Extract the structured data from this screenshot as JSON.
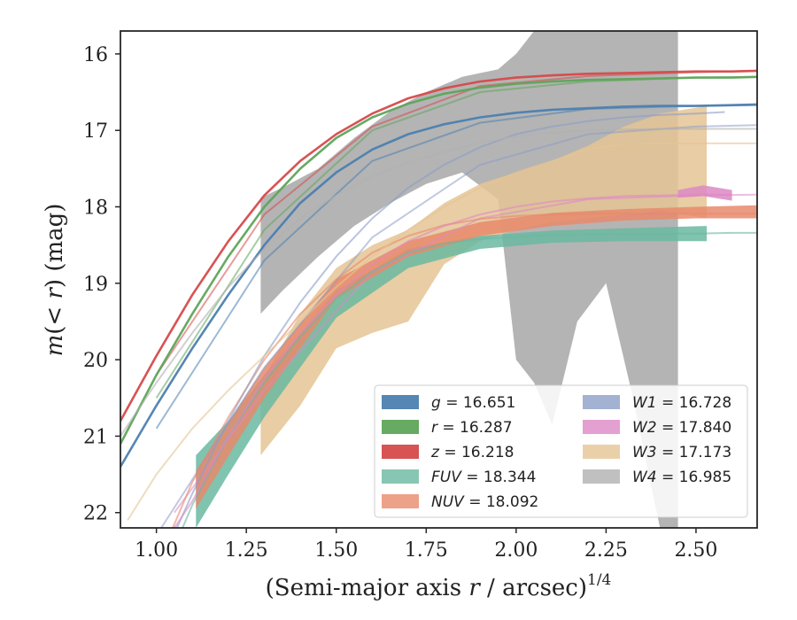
{
  "chart_data": {
    "type": "line",
    "title": "",
    "xlabel": "(Semi-major axis r / arcsec)^1/4",
    "xlabel_parts": {
      "main": "(Semi-major axis ",
      "var": "r",
      "mid": " / arcsec)",
      "sup": "1/4"
    },
    "ylabel": "m(< r) (mag)",
    "ylabel_parts": {
      "m": "m",
      "open": "(",
      "lt": "< ",
      "r": "r",
      "close": ") (mag)"
    },
    "xlim": [
      0.9,
      2.67
    ],
    "ylim": [
      22.2,
      15.7
    ],
    "y_inverted": true,
    "grid": false,
    "legend_placement": "lower-right",
    "x_ticks": [
      {
        "value": 1.0,
        "label": "1.00"
      },
      {
        "value": 1.25,
        "label": "1.25"
      },
      {
        "value": 1.5,
        "label": "1.50"
      },
      {
        "value": 1.75,
        "label": "1.75"
      },
      {
        "value": 2.0,
        "label": "2.00"
      },
      {
        "value": 2.25,
        "label": "2.25"
      },
      {
        "value": 2.5,
        "label": "2.50"
      }
    ],
    "y_ticks": [
      {
        "value": 16,
        "label": "16"
      },
      {
        "value": 17,
        "label": "17"
      },
      {
        "value": 18,
        "label": "18"
      },
      {
        "value": 19,
        "label": "19"
      },
      {
        "value": 20,
        "label": "20"
      },
      {
        "value": 21,
        "label": "21"
      },
      {
        "value": 22,
        "label": "22"
      }
    ],
    "series": [
      {
        "band": "g",
        "legend_var": "g",
        "legend_value": "16.651",
        "color": "#4c7fb0",
        "curve": {
          "x": [
            0.9,
            1.0,
            1.1,
            1.2,
            1.3,
            1.4,
            1.5,
            1.6,
            1.7,
            1.8,
            1.9,
            2.0,
            2.1,
            2.2,
            2.3,
            2.4,
            2.5,
            2.6,
            2.67
          ],
          "y": [
            21.4,
            20.6,
            19.85,
            19.15,
            18.5,
            17.95,
            17.55,
            17.25,
            17.05,
            16.92,
            16.83,
            16.77,
            16.73,
            16.71,
            16.69,
            16.68,
            16.68,
            16.67,
            16.66
          ]
        },
        "smooth": {
          "x": [
            1.0,
            1.3,
            1.6,
            1.9,
            2.2,
            2.5,
            2.67
          ],
          "y": [
            20.9,
            18.7,
            17.4,
            16.9,
            16.72,
            16.68,
            16.67
          ]
        }
      },
      {
        "band": "r",
        "legend_var": "r",
        "legend_value": "16.287",
        "color": "#5fa55a",
        "curve": {
          "x": [
            0.9,
            1.0,
            1.1,
            1.2,
            1.3,
            1.4,
            1.5,
            1.6,
            1.7,
            1.8,
            1.9,
            2.0,
            2.1,
            2.2,
            2.3,
            2.4,
            2.5,
            2.6,
            2.67
          ],
          "y": [
            21.1,
            20.2,
            19.4,
            18.65,
            18.0,
            17.5,
            17.1,
            16.83,
            16.65,
            16.52,
            16.44,
            16.39,
            16.36,
            16.34,
            16.33,
            16.32,
            16.31,
            16.31,
            16.3
          ]
        },
        "smooth": {
          "x": [
            1.0,
            1.3,
            1.6,
            1.9,
            2.2,
            2.5,
            2.67
          ],
          "y": [
            20.5,
            18.3,
            17.0,
            16.5,
            16.36,
            16.31,
            16.3
          ]
        }
      },
      {
        "band": "z",
        "legend_var": "z",
        "legend_value": "16.218",
        "color": "#d64a4b",
        "curve": {
          "x": [
            0.9,
            1.0,
            1.1,
            1.2,
            1.3,
            1.4,
            1.5,
            1.6,
            1.7,
            1.8,
            1.9,
            2.0,
            2.1,
            2.2,
            2.3,
            2.4,
            2.5,
            2.6,
            2.67
          ],
          "y": [
            20.8,
            19.95,
            19.15,
            18.45,
            17.85,
            17.4,
            17.05,
            16.78,
            16.58,
            16.45,
            16.36,
            16.31,
            16.28,
            16.26,
            16.25,
            16.24,
            16.23,
            16.23,
            16.22
          ]
        },
        "smooth": {
          "x": [
            1.0,
            1.3,
            1.6,
            1.9,
            2.2,
            2.5,
            2.67
          ],
          "y": [
            20.2,
            18.1,
            16.95,
            16.42,
            16.29,
            16.24,
            16.22
          ]
        }
      },
      {
        "band": "FUV",
        "legend_var": "FUV",
        "legend_value": "18.344",
        "color": "#6ab8a1",
        "curve": {
          "x": [
            1.0,
            1.1,
            1.2,
            1.3,
            1.4,
            1.5,
            1.6,
            1.7,
            1.8,
            1.9,
            2.0,
            2.1,
            2.2,
            2.3,
            2.4,
            2.5,
            2.6,
            2.67
          ],
          "y": [
            23.0,
            21.9,
            21.0,
            20.3,
            19.7,
            19.2,
            18.85,
            18.6,
            18.48,
            18.42,
            18.39,
            18.37,
            18.36,
            18.35,
            18.35,
            18.35,
            18.34,
            18.34
          ]
        },
        "band_upper": {
          "x": [
            1.11,
            1.2,
            1.3,
            1.5,
            1.7,
            1.9,
            2.1,
            2.3,
            2.53
          ],
          "y": [
            21.25,
            20.8,
            20.2,
            19.1,
            18.55,
            18.38,
            18.31,
            18.28,
            18.25
          ]
        },
        "band_lower": {
          "x": [
            1.11,
            1.2,
            1.3,
            1.5,
            1.7,
            1.9,
            2.1,
            2.3,
            2.53
          ],
          "y": [
            22.2,
            21.5,
            20.75,
            19.45,
            18.8,
            18.55,
            18.47,
            18.45,
            18.45
          ]
        }
      },
      {
        "band": "NUV",
        "legend_var": "NUV",
        "legend_value": "18.092",
        "color": "#e8896c",
        "curve": {
          "x": [
            1.0,
            1.1,
            1.2,
            1.3,
            1.4,
            1.5,
            1.6,
            1.7,
            1.8,
            1.9,
            2.0,
            2.1,
            2.2,
            2.3,
            2.4,
            2.5,
            2.6,
            2.67
          ],
          "y": [
            22.7,
            21.6,
            20.75,
            20.0,
            19.4,
            18.95,
            18.6,
            18.38,
            18.24,
            18.16,
            18.12,
            18.1,
            18.09,
            18.09,
            18.09,
            18.09,
            18.09,
            18.09
          ]
        },
        "band_upper": {
          "x": [
            1.11,
            1.3,
            1.5,
            1.7,
            1.9,
            2.1,
            2.3,
            2.5,
            2.67
          ],
          "y": [
            21.45,
            20.1,
            18.95,
            18.45,
            18.2,
            18.08,
            18.03,
            18.0,
            17.98
          ]
        },
        "band_lower": {
          "x": [
            1.11,
            1.3,
            1.5,
            1.7,
            1.9,
            2.1,
            2.3,
            2.5,
            2.67
          ],
          "y": [
            21.95,
            20.5,
            19.2,
            18.65,
            18.38,
            18.25,
            18.18,
            18.15,
            18.15
          ]
        }
      },
      {
        "band": "W1",
        "legend_var": "W1",
        "legend_value": "16.728",
        "color": "#8c9dc7",
        "curve": {
          "x": [
            1.0,
            1.1,
            1.2,
            1.3,
            1.4,
            1.5,
            1.6,
            1.7,
            1.8,
            1.9,
            2.0,
            2.1,
            2.2,
            2.3,
            2.4,
            2.5,
            2.58
          ],
          "y": [
            22.8,
            21.75,
            20.8,
            19.95,
            19.25,
            18.65,
            18.15,
            17.75,
            17.45,
            17.22,
            17.05,
            16.95,
            16.88,
            16.83,
            16.8,
            16.78,
            16.76
          ]
        },
        "smooth": {
          "x": [
            1.0,
            1.3,
            1.6,
            1.9,
            2.2,
            2.5,
            2.67
          ],
          "y": [
            22.3,
            20.1,
            18.4,
            17.45,
            17.05,
            16.95,
            16.93
          ]
        }
      },
      {
        "band": "W2",
        "legend_var": "W2",
        "legend_value": "17.840",
        "color": "#dd88c4",
        "curve": {
          "x": [
            1.05,
            1.1,
            1.2,
            1.3,
            1.4,
            1.5,
            1.6,
            1.7,
            1.8,
            1.9,
            2.0,
            2.1,
            2.2,
            2.3,
            2.4,
            2.5,
            2.6
          ],
          "y": [
            22.2,
            21.85,
            21.0,
            20.25,
            19.65,
            19.15,
            18.75,
            18.45,
            18.25,
            18.1,
            18.0,
            17.93,
            17.89,
            17.86,
            17.85,
            17.84,
            17.84
          ]
        },
        "smooth": {
          "x": [
            1.05,
            1.3,
            1.6,
            1.9,
            2.2,
            2.5,
            2.67
          ],
          "y": [
            22.0,
            20.4,
            18.85,
            18.15,
            17.9,
            17.85,
            17.84
          ]
        },
        "band_upper": {
          "x": [
            2.45,
            2.52,
            2.6
          ],
          "y": [
            17.78,
            17.72,
            17.78
          ]
        },
        "band_lower": {
          "x": [
            2.45,
            2.52,
            2.6
          ],
          "y": [
            17.88,
            17.86,
            17.92
          ]
        }
      },
      {
        "band": "W3",
        "legend_var": "W3",
        "legend_value": "17.173",
        "color": "#e5c494",
        "curve": {
          "x": [
            0.92,
            1.0,
            1.1,
            1.2,
            1.3,
            1.4,
            1.5,
            1.6,
            1.7,
            1.8,
            1.9,
            2.0,
            2.1,
            2.2,
            2.3,
            2.4,
            2.5,
            2.67
          ],
          "y": [
            22.1,
            21.5,
            20.9,
            20.4,
            19.95,
            19.5,
            19.05,
            18.65,
            18.3,
            18.0,
            17.75,
            17.55,
            17.4,
            17.25,
            17.18,
            17.17,
            17.17,
            17.17
          ]
        },
        "band_upper": {
          "x": [
            1.29,
            1.4,
            1.5,
            1.6,
            1.7,
            1.8,
            1.9,
            2.0,
            2.1,
            2.2,
            2.3,
            2.4,
            2.53
          ],
          "y": [
            20.3,
            19.4,
            18.8,
            18.5,
            18.3,
            17.95,
            17.7,
            17.55,
            17.4,
            17.2,
            16.95,
            16.78,
            16.68
          ]
        },
        "band_lower": {
          "x": [
            1.29,
            1.4,
            1.5,
            1.6,
            1.7,
            1.8,
            1.9,
            2.0,
            2.1,
            2.2,
            2.3,
            2.4,
            2.53
          ],
          "y": [
            21.25,
            20.6,
            19.85,
            19.65,
            19.5,
            18.75,
            18.45,
            18.3,
            18.2,
            18.15,
            18.1,
            18.05,
            18.15
          ]
        }
      },
      {
        "band": "W4",
        "legend_var": "W4",
        "legend_value": "16.985",
        "color": "#b0b0b0",
        "curve": {
          "x": [
            0.9,
            1.0,
            1.1,
            1.2,
            1.3,
            1.4,
            1.5,
            1.6,
            1.7,
            1.8,
            1.9,
            2.0,
            2.1,
            2.2,
            2.3,
            2.4,
            2.5,
            2.67
          ],
          "y": [
            21.0,
            20.3,
            19.65,
            19.05,
            18.55,
            18.15,
            17.85,
            17.6,
            17.42,
            17.28,
            17.16,
            17.08,
            17.03,
            17.0,
            16.99,
            16.98,
            16.98,
            16.98
          ]
        },
        "band_upper": {
          "x": [
            1.29,
            1.35,
            1.45,
            1.55,
            1.65,
            1.75,
            1.85,
            1.95,
            2.0,
            2.05,
            2.1,
            2.2,
            2.3,
            2.35,
            2.45
          ],
          "y": [
            17.88,
            17.75,
            17.5,
            17.1,
            16.75,
            16.5,
            16.3,
            16.2,
            16.0,
            15.7,
            15.7,
            15.7,
            15.7,
            15.7,
            15.7
          ]
        },
        "band_lower": {
          "x": [
            1.29,
            1.35,
            1.45,
            1.55,
            1.65,
            1.75,
            1.85,
            1.95,
            2.0,
            2.05,
            2.1,
            2.17,
            2.25,
            2.32,
            2.4,
            2.45
          ],
          "y": [
            19.4,
            19.1,
            18.65,
            18.25,
            17.95,
            17.7,
            17.55,
            17.9,
            20.0,
            20.3,
            20.85,
            19.5,
            19.0,
            20.4,
            22.2,
            22.2
          ]
        }
      }
    ]
  }
}
